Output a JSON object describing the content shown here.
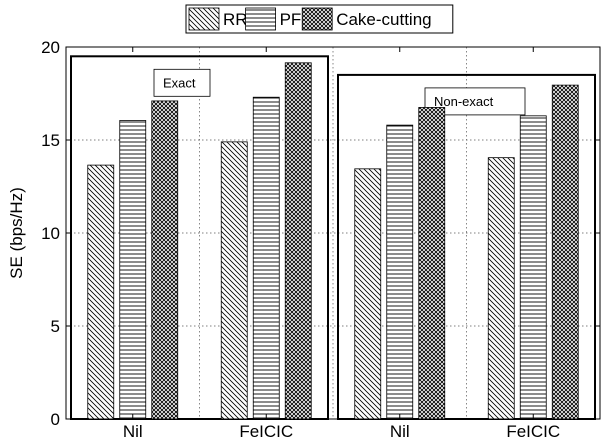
{
  "chart_data": {
    "type": "bar",
    "categories": [
      "Nil",
      "FeICIC",
      "Nil",
      "FeICIC"
    ],
    "series": [
      {
        "name": "RR",
        "values": [
          13.65,
          14.9,
          13.45,
          14.05
        ],
        "pattern": "diagonal"
      },
      {
        "name": "PF",
        "values": [
          16.05,
          17.3,
          15.8,
          16.3
        ],
        "pattern": "horizontal"
      },
      {
        "name": "Cake-cutting",
        "values": [
          17.1,
          19.15,
          16.75,
          17.95
        ],
        "pattern": "crosshatch"
      }
    ],
    "ylabel": "SE (bps/Hz)",
    "xlabel": "",
    "ylim": [
      0,
      20
    ],
    "yticks": [
      0,
      5,
      10,
      15,
      20
    ],
    "grid": true,
    "legend_position": "top-center",
    "annotations": [
      {
        "text": "Exact",
        "groups": [
          0,
          1
        ],
        "top": 19.5
      },
      {
        "text": "Non-exact",
        "groups": [
          2,
          3
        ],
        "top": 18.5
      }
    ]
  }
}
